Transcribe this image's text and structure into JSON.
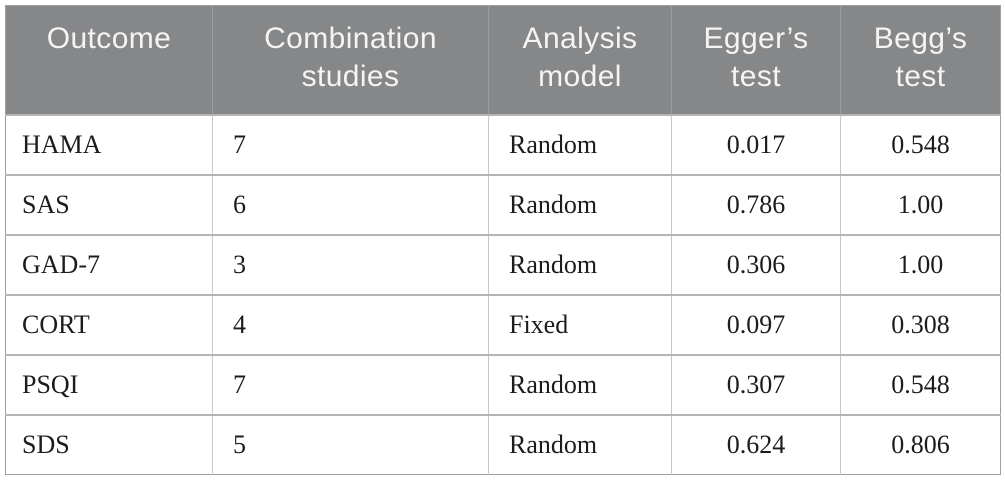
{
  "chart_data": {
    "type": "table",
    "columns": [
      "Outcome",
      "Combination studies",
      "Analysis model",
      "Egger’s test",
      "Begg’s test"
    ],
    "rows": [
      [
        "HAMA",
        "7",
        "Random",
        "0.017",
        "0.548"
      ],
      [
        "SAS",
        "6",
        "Random",
        "0.786",
        "1.00"
      ],
      [
        "GAD-7",
        "3",
        "Random",
        "0.306",
        "1.00"
      ],
      [
        "CORT",
        "4",
        "Fixed",
        "0.097",
        "0.308"
      ],
      [
        "PSQI",
        "7",
        "Random",
        "0.307",
        "0.548"
      ],
      [
        "SDS",
        "5",
        "Random",
        "0.624",
        "0.806"
      ]
    ],
    "layout_hints": {
      "header_alignment": "center",
      "text_column_alignment": "left",
      "numeric_column_alignment": "center",
      "grid": "on"
    }
  },
  "colors": {
    "header_bg": "#868789",
    "header_text": "#f4f4f4",
    "header_divider": "#9c9da0",
    "body_text": "#1c1c1e",
    "border_outer": "#9d9ea0",
    "border_inner": "#c6c7c9",
    "row_divider": "#b4b5b7",
    "page_bg": "#ffffff"
  }
}
